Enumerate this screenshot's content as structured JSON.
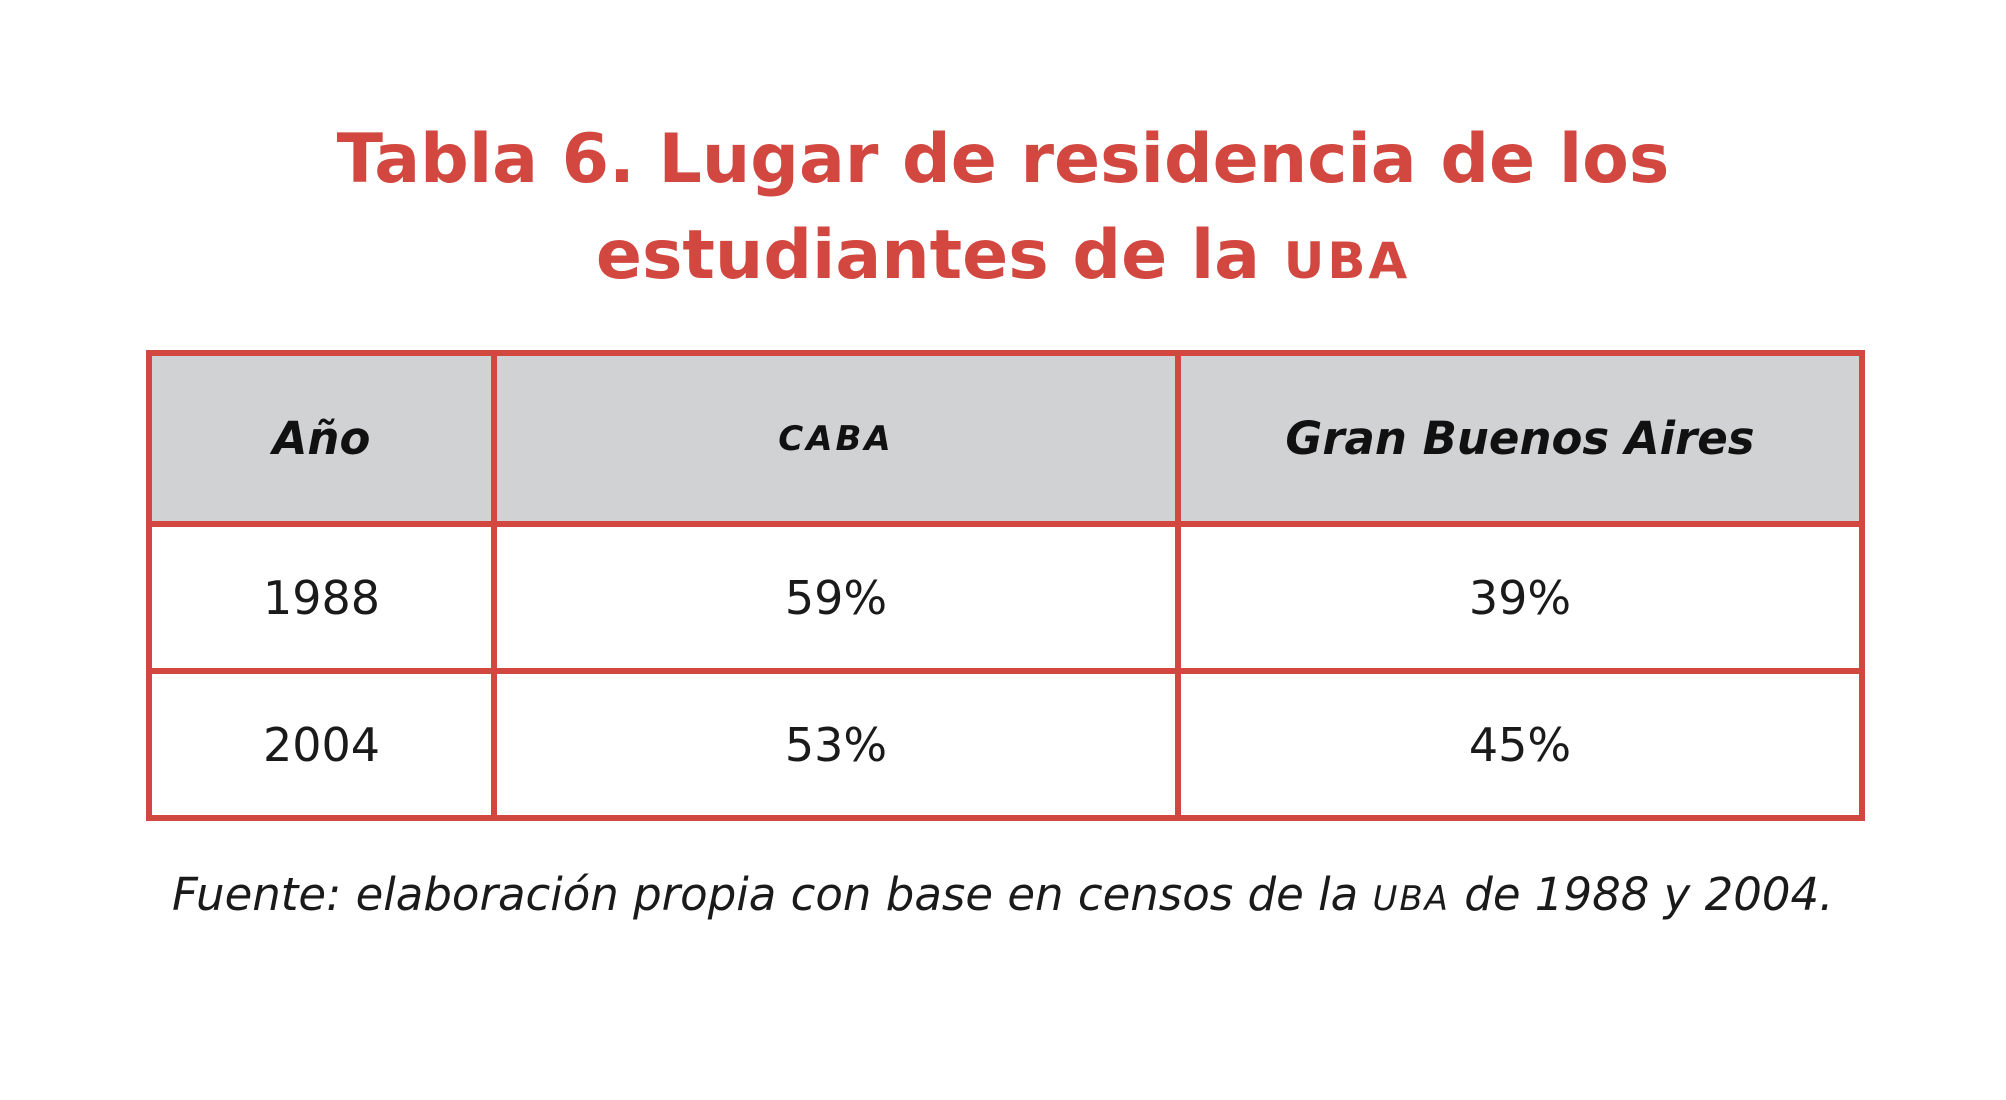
{
  "title": {
    "line1": "Tabla 6. Lugar de residencia de los",
    "line2_text": "estudiantes de la ",
    "line2_abbr": "UBA"
  },
  "table": {
    "headers": [
      "Año",
      "CABA",
      "Gran Buenos Aires"
    ],
    "rows": [
      [
        "1988",
        "59%",
        "39%"
      ],
      [
        "2004",
        "53%",
        "45%"
      ]
    ]
  },
  "source": {
    "before": "Fuente: elaboración propia con base en censos de la ",
    "abbr": "UBA",
    "after": " de 1988 y 2004."
  },
  "colors": {
    "accent": "#d2473f",
    "header_bg": "#d1d2d4",
    "text": "#1a1a1a"
  }
}
